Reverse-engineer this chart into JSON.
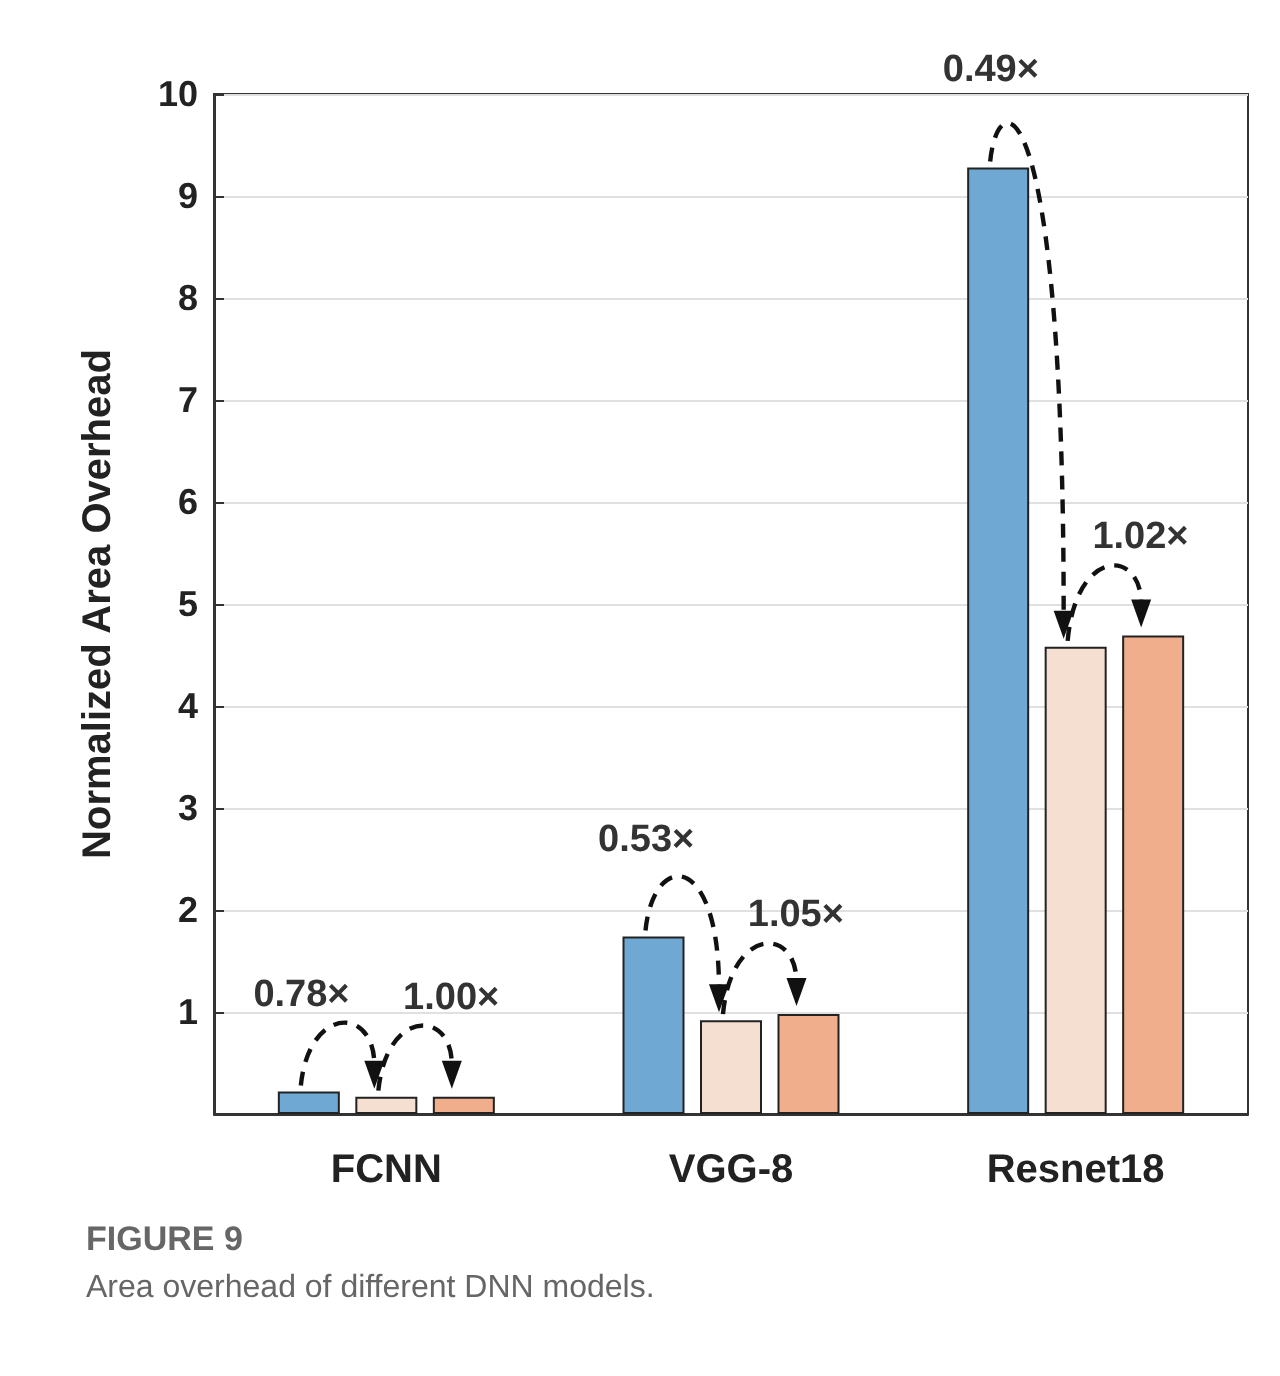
{
  "chart_data": {
    "type": "bar",
    "title": "FIGURE 9",
    "subtitle": "Area overhead of different DNN models.",
    "ylabel": "Normalized Area Overhead",
    "categories": [
      "FCNN",
      "VGG-8",
      "Resnet18"
    ],
    "series": [
      {
        "color": "#6fa8d2",
        "values": [
          0.22,
          1.74,
          9.28
        ]
      },
      {
        "color": "#f5dfd0",
        "values": [
          0.17,
          0.92,
          4.58
        ]
      },
      {
        "color": "#f0ae8d",
        "values": [
          0.17,
          0.98,
          4.69
        ]
      }
    ],
    "ylim": [
      0,
      10
    ],
    "yticks": [
      1,
      2,
      3,
      4,
      5,
      6,
      7,
      8,
      9,
      10
    ],
    "grid": "y",
    "annotations": [
      "0.78×",
      {
        "text": "1.00×",
        "y": 0.17
      },
      "0.53×",
      {
        "text": "1.05×",
        "y": 0.98
      },
      "0.49×",
      {
        "text": "1.02×",
        "y": 4.69
      }
    ]
  }
}
